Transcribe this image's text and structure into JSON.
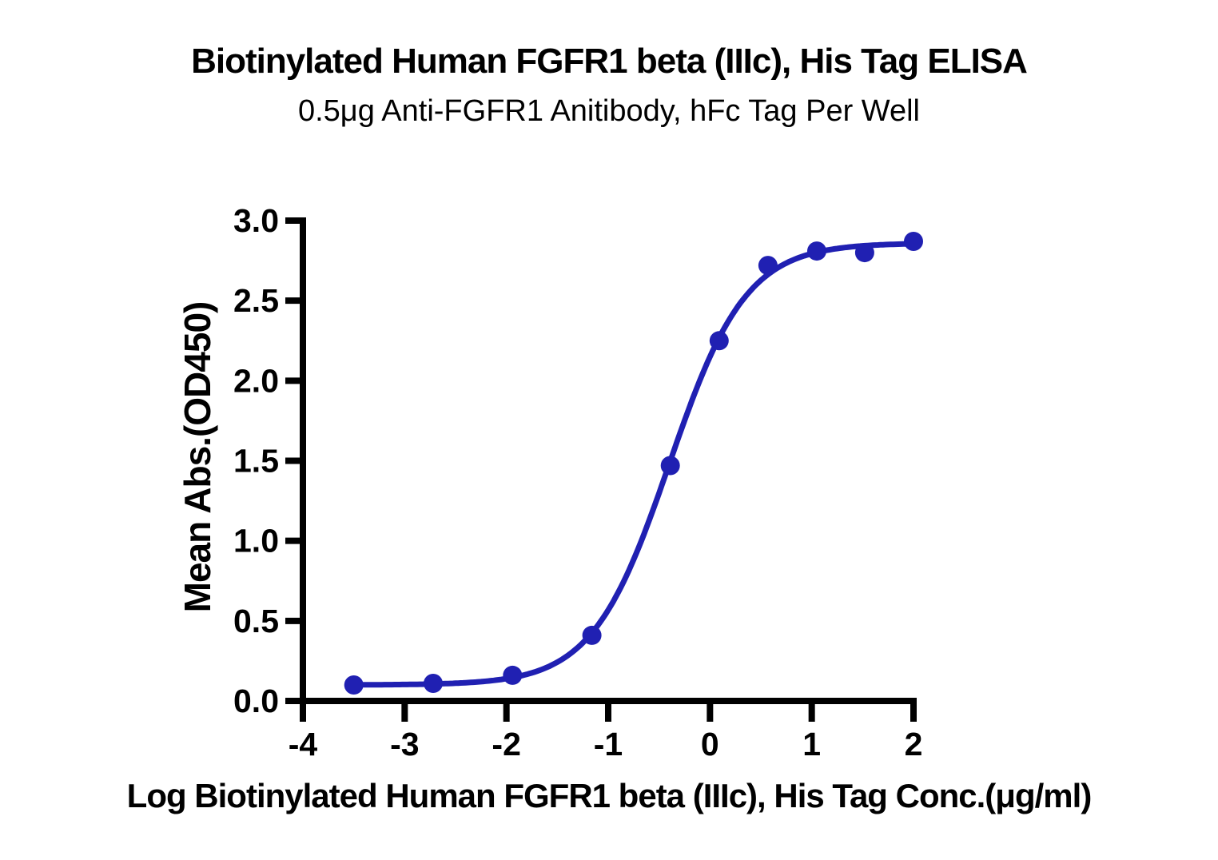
{
  "chart_data": {
    "type": "scatter",
    "title": "Biotinylated Human FGFR1 beta (IIIc), His Tag ELISA",
    "subtitle": "0.5μg Anti-FGFR1 Anitibody, hFc Tag Per Well",
    "xlabel": "Log Biotinylated Human FGFR1 beta (IIIc), His Tag Conc.(μg/ml)",
    "ylabel": "Mean Abs.(OD450)",
    "xlim": [
      -4,
      2
    ],
    "ylim": [
      0,
      3
    ],
    "x_ticks": [
      "-4",
      "-3",
      "-2",
      "-1",
      "0",
      "1",
      "2"
    ],
    "y_ticks": [
      "0.0",
      "0.5",
      "1.0",
      "1.5",
      "2.0",
      "2.5",
      "3.0"
    ],
    "grid": false,
    "legend": "none",
    "series_name": "Biotinylated Human FGFR1 beta (IIIc), His Tag",
    "points": [
      {
        "x": -3.5,
        "y": 0.1
      },
      {
        "x": -2.72,
        "y": 0.11
      },
      {
        "x": -1.94,
        "y": 0.16
      },
      {
        "x": -1.16,
        "y": 0.41
      },
      {
        "x": -0.39,
        "y": 1.47
      },
      {
        "x": 0.09,
        "y": 2.25
      },
      {
        "x": 0.57,
        "y": 2.72
      },
      {
        "x": 1.05,
        "y": 2.81
      },
      {
        "x": 1.52,
        "y": 2.8
      },
      {
        "x": 2.0,
        "y": 2.87
      }
    ],
    "fit_curve": {
      "model": "4PL",
      "bottom": 0.1,
      "top": 2.86,
      "logEC50": -0.4,
      "hill": 1.15,
      "x_range": [
        -3.5,
        2.0
      ]
    },
    "colors": {
      "curve": "#2020b2",
      "marker": "#2020b2",
      "axis": "#000000",
      "text": "#000000",
      "background": "#ffffff"
    }
  }
}
